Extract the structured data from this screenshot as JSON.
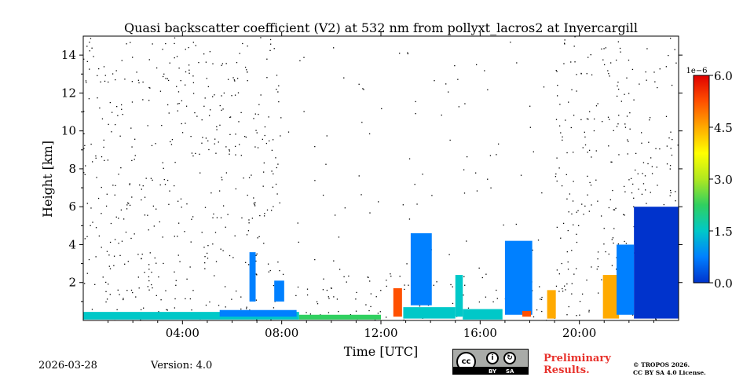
{
  "chart_data": {
    "type": "heatmap",
    "title": "Quasi backscatter coefficient (V2) at 532 nm from pollyxt_lacros2 at Invercargill",
    "xlabel": "Time [UTC]",
    "ylabel": "Height [km]",
    "xlim_hours": [
      0,
      24
    ],
    "ylim_km": [
      0,
      15
    ],
    "x_ticks": [
      {
        "hour": 4,
        "label": "04:00"
      },
      {
        "hour": 8,
        "label": "08:00"
      },
      {
        "hour": 12,
        "label": "12:00"
      },
      {
        "hour": 16,
        "label": "16:00"
      },
      {
        "hour": 20,
        "label": "20:00"
      }
    ],
    "y_ticks": [
      {
        "km": 2,
        "label": "2"
      },
      {
        "km": 4,
        "label": "4"
      },
      {
        "km": 6,
        "label": "6"
      },
      {
        "km": 8,
        "label": "8"
      },
      {
        "km": 10,
        "label": "10"
      },
      {
        "km": 12,
        "label": "12"
      },
      {
        "km": 14,
        "label": "14"
      }
    ],
    "colorbar": {
      "multiplier": "1e−6",
      "range": [
        0,
        6
      ],
      "ticks": [
        {
          "value": 0,
          "label": "0.0"
        },
        {
          "value": 1.5,
          "label": "1.5"
        },
        {
          "value": 3,
          "label": "3.0"
        },
        {
          "value": 4.5,
          "label": "4.5"
        },
        {
          "value": 6,
          "label": "6.0"
        }
      ],
      "colors": [
        "#0033cc",
        "#0080ff",
        "#00c8c8",
        "#30d060",
        "#b0e820",
        "#ffff00",
        "#ffaa00",
        "#ff5000",
        "#e00000"
      ]
    },
    "features": [
      {
        "name": "boundary layer",
        "t0": 0.0,
        "t1": 8.7,
        "h0": 0.05,
        "h1": 0.45,
        "value": 1.3
      },
      {
        "name": "boundary layer",
        "t0": 8.7,
        "t1": 12.0,
        "h0": 0.05,
        "h1": 0.3,
        "value": 2.6
      },
      {
        "name": "low cloud",
        "t0": 5.5,
        "t1": 8.6,
        "h0": 0.2,
        "h1": 0.55,
        "value": 0.6
      },
      {
        "name": "plume",
        "t0": 6.7,
        "t1": 6.95,
        "h0": 1.0,
        "h1": 3.6,
        "value": 0.8
      },
      {
        "name": "plume",
        "t0": 7.7,
        "t1": 8.1,
        "h0": 1.0,
        "h1": 2.1,
        "value": 0.9
      },
      {
        "name": "cloud",
        "t0": 12.5,
        "t1": 12.85,
        "h0": 0.2,
        "h1": 1.7,
        "value": 5.4
      },
      {
        "name": "cloud",
        "t0": 13.2,
        "t1": 14.05,
        "h0": 0.8,
        "h1": 4.6,
        "value": 0.7
      },
      {
        "name": "cloud base",
        "t0": 12.9,
        "t1": 15.0,
        "h0": 0.1,
        "h1": 0.7,
        "value": 1.6
      },
      {
        "name": "cloud",
        "t0": 15.0,
        "t1": 15.3,
        "h0": 0.2,
        "h1": 2.4,
        "value": 1.4
      },
      {
        "name": "cloud",
        "t0": 15.3,
        "t1": 16.9,
        "h0": 0.05,
        "h1": 0.6,
        "value": 1.7
      },
      {
        "name": "cloud",
        "t0": 17.0,
        "t1": 18.1,
        "h0": 0.3,
        "h1": 4.2,
        "value": 1.1
      },
      {
        "name": "cloud",
        "t0": 17.7,
        "t1": 18.05,
        "h0": 0.2,
        "h1": 0.5,
        "value": 5.3
      },
      {
        "name": "cloud",
        "t0": 18.7,
        "t1": 19.05,
        "h0": 0.1,
        "h1": 1.6,
        "value": 4.6
      },
      {
        "name": "cloud",
        "t0": 20.95,
        "t1": 21.6,
        "h0": 0.1,
        "h1": 2.4,
        "value": 4.2
      },
      {
        "name": "cloud",
        "t0": 21.5,
        "t1": 22.2,
        "h0": 0.3,
        "h1": 4.0,
        "value": 0.9
      },
      {
        "name": "noisy upper signal",
        "t0": 22.2,
        "t1": 24.0,
        "h0": 0.1,
        "h1": 6.0,
        "value": 0.3
      }
    ]
  },
  "footer": {
    "date": "2026-03-28",
    "version": "Version: 4.0",
    "preliminary_line1": "Preliminary",
    "preliminary_line2": "Results.",
    "license_line1": "© TROPOS 2026.",
    "license_line2": "CC BY SA 4.0 License.",
    "badge": {
      "cc": "cc",
      "by": "BY",
      "sa": "SA",
      "by_glyph": "i",
      "sa_glyph": "↻"
    }
  }
}
